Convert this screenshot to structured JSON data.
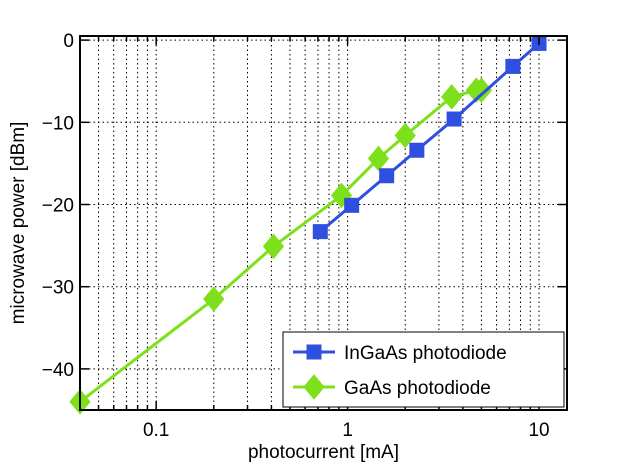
{
  "chart_data": {
    "type": "line",
    "xlabel": "photocurrent [mA]",
    "ylabel": "microwave power [dBm]",
    "xscale": "log",
    "xlim": [
      0.04,
      14
    ],
    "ylim": [
      -45,
      0.5
    ],
    "x_ticks": [
      {
        "value": 0.1,
        "label": "0.1"
      },
      {
        "value": 1,
        "label": "1"
      },
      {
        "value": 10,
        "label": "10"
      }
    ],
    "y_ticks": [
      {
        "value": 0,
        "label": "0"
      },
      {
        "value": -10,
        "label": "−10"
      },
      {
        "value": -20,
        "label": "−20"
      },
      {
        "value": -30,
        "label": "−30"
      },
      {
        "value": -40,
        "label": "−40"
      }
    ],
    "grid": "dotted, major and minor (log x)",
    "legend_position": "bottom-right",
    "series": [
      {
        "name": "InGaAs photodiode",
        "color": "#2e4fe0",
        "marker": "square",
        "x": [
          0.72,
          1.05,
          1.6,
          2.3,
          3.6,
          7.3,
          10
        ],
        "y": [
          -23.3,
          -20.1,
          -16.5,
          -13.4,
          -9.6,
          -3.2,
          -0.4
        ]
      },
      {
        "name": "GaAs photodiode",
        "color": "#7ee01a",
        "marker": "diamond",
        "x": [
          0.04,
          0.2,
          0.41,
          0.93,
          1.45,
          2.0,
          3.5,
          4.7,
          5.0
        ],
        "y": [
          -44.0,
          -31.5,
          -25.1,
          -18.9,
          -14.4,
          -11.6,
          -6.9,
          -6.1,
          -6.1
        ]
      }
    ]
  }
}
